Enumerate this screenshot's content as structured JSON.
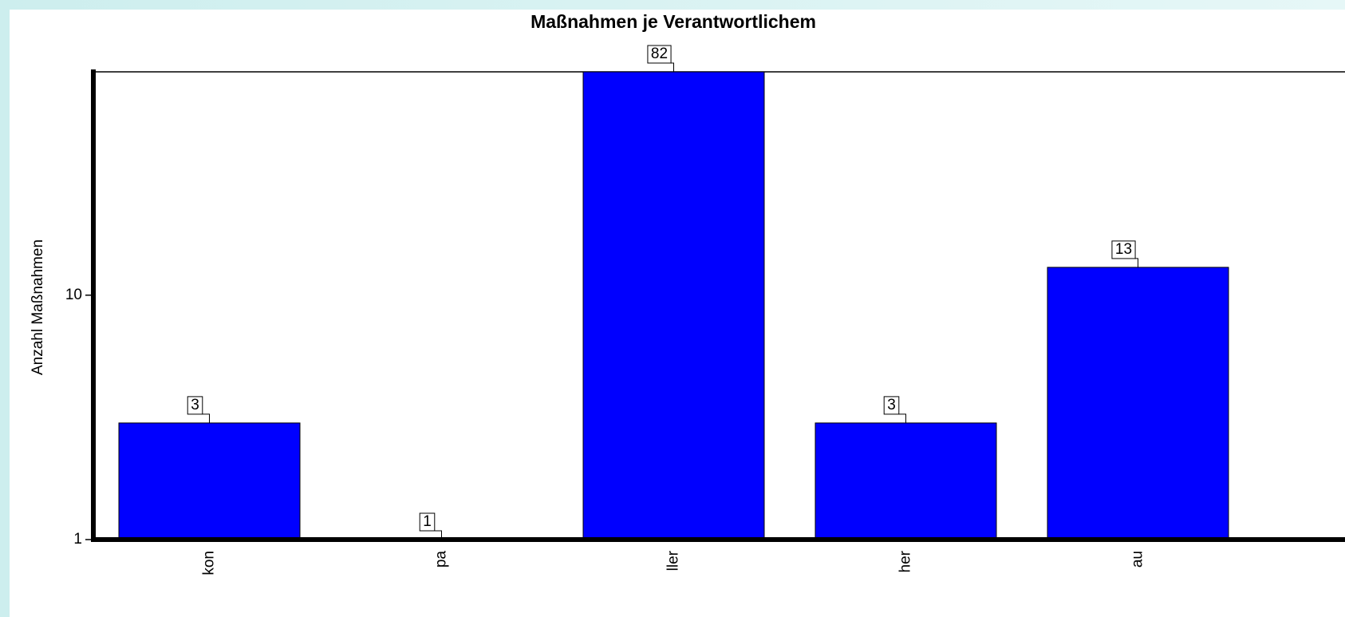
{
  "chart_data": {
    "type": "bar",
    "title": "Maßnahmen je Verantwortlichem",
    "y_label": "Anzahl Maßnahmen",
    "categories": [
      "kon",
      "pa",
      "ller",
      "her",
      "au"
    ],
    "values": [
      3,
      1,
      82,
      3,
      13
    ],
    "color": "#0000ff",
    "ylim": [
      1,
      82
    ],
    "yticks": [
      1,
      10
    ],
    "log_y": true,
    "data_labels": true
  }
}
